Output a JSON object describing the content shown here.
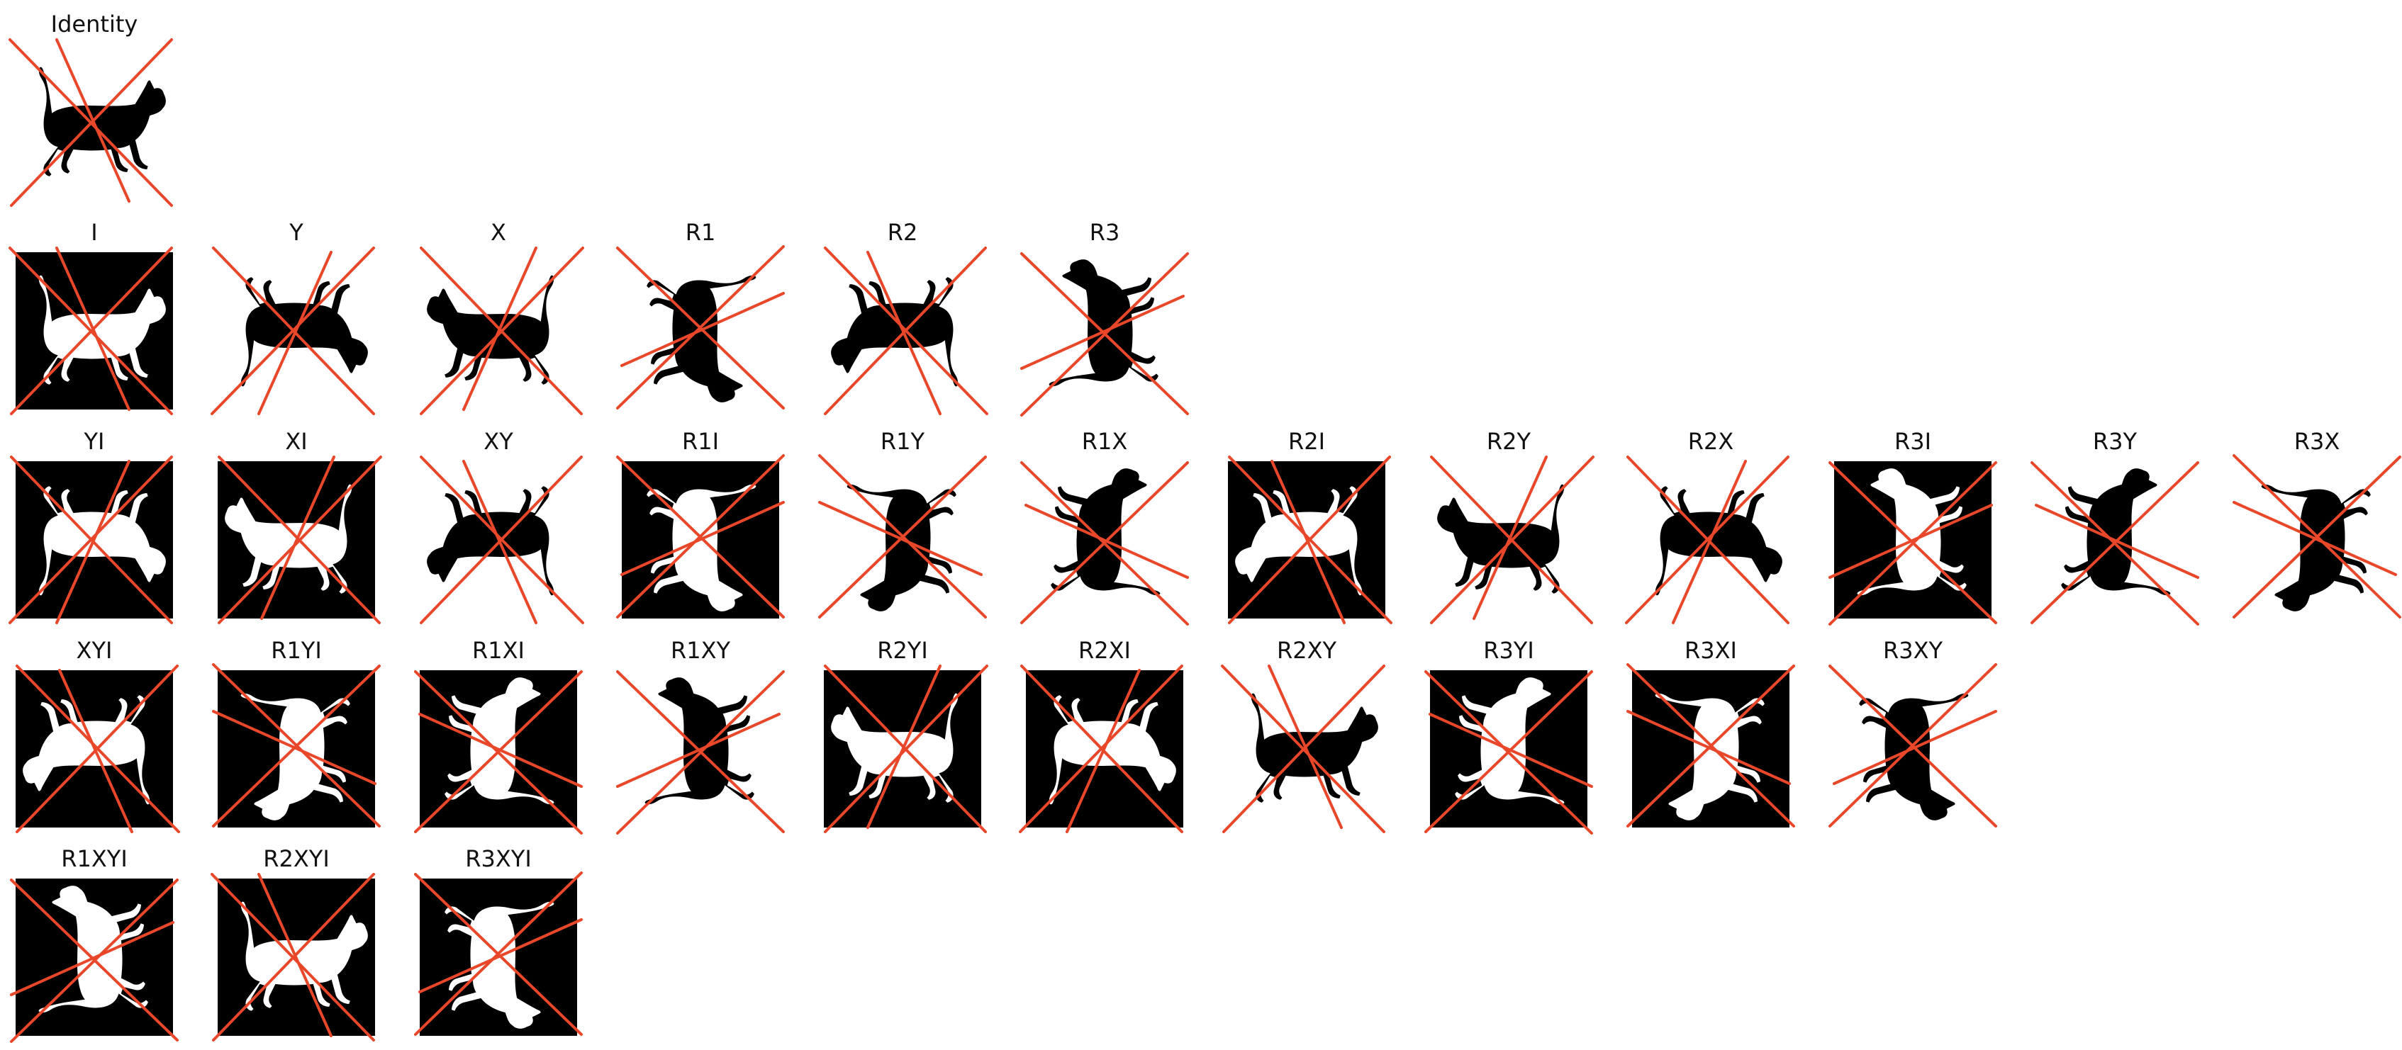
{
  "figure": {
    "panels": [
      {
        "label": "Identity",
        "transform": "",
        "inverted": false
      },
      {
        "label": "I",
        "transform": "",
        "inverted": true
      },
      {
        "label": "Y",
        "transform": "Y",
        "inverted": false
      },
      {
        "label": "X",
        "transform": "X",
        "inverted": false
      },
      {
        "label": "R1",
        "transform": "R1",
        "inverted": false
      },
      {
        "label": "R2",
        "transform": "R2",
        "inverted": false
      },
      {
        "label": "R3",
        "transform": "R3",
        "inverted": false
      },
      {
        "label": "YI",
        "transform": "Y",
        "inverted": true
      },
      {
        "label": "XI",
        "transform": "X",
        "inverted": true
      },
      {
        "label": "XY",
        "transform": "XY",
        "inverted": false
      },
      {
        "label": "R1I",
        "transform": "R1",
        "inverted": true
      },
      {
        "label": "R1Y",
        "transform": "R1Y",
        "inverted": false
      },
      {
        "label": "R1X",
        "transform": "R1X",
        "inverted": false
      },
      {
        "label": "R2I",
        "transform": "R2",
        "inverted": true
      },
      {
        "label": "R2Y",
        "transform": "R2Y",
        "inverted": false
      },
      {
        "label": "R2X",
        "transform": "R2X",
        "inverted": false
      },
      {
        "label": "R3I",
        "transform": "R3",
        "inverted": true
      },
      {
        "label": "R3Y",
        "transform": "R3Y",
        "inverted": false
      },
      {
        "label": "R3X",
        "transform": "R3X",
        "inverted": false
      },
      {
        "label": "XYI",
        "transform": "XY",
        "inverted": true
      },
      {
        "label": "R1YI",
        "transform": "R1Y",
        "inverted": true
      },
      {
        "label": "R1XI",
        "transform": "R1X",
        "inverted": true
      },
      {
        "label": "R1XY",
        "transform": "R1XY",
        "inverted": false
      },
      {
        "label": "R2YI",
        "transform": "R2Y",
        "inverted": true
      },
      {
        "label": "R2XI",
        "transform": "R2X",
        "inverted": true
      },
      {
        "label": "R2XY",
        "transform": "R2XY",
        "inverted": false
      },
      {
        "label": "R3YI",
        "transform": "R3Y",
        "inverted": true
      },
      {
        "label": "R3XI",
        "transform": "R3X",
        "inverted": true
      },
      {
        "label": "R3XY",
        "transform": "R3XY",
        "inverted": false
      },
      {
        "label": "R1XYI",
        "transform": "R1XY",
        "inverted": true
      },
      {
        "label": "R2XYI",
        "transform": "R2XY",
        "inverted": true
      },
      {
        "label": "R3XYI",
        "transform": "R3XY",
        "inverted": true
      }
    ],
    "colors": {
      "stroke": "#e8472a",
      "silhouette": "#000000",
      "background": "#ffffff"
    }
  }
}
